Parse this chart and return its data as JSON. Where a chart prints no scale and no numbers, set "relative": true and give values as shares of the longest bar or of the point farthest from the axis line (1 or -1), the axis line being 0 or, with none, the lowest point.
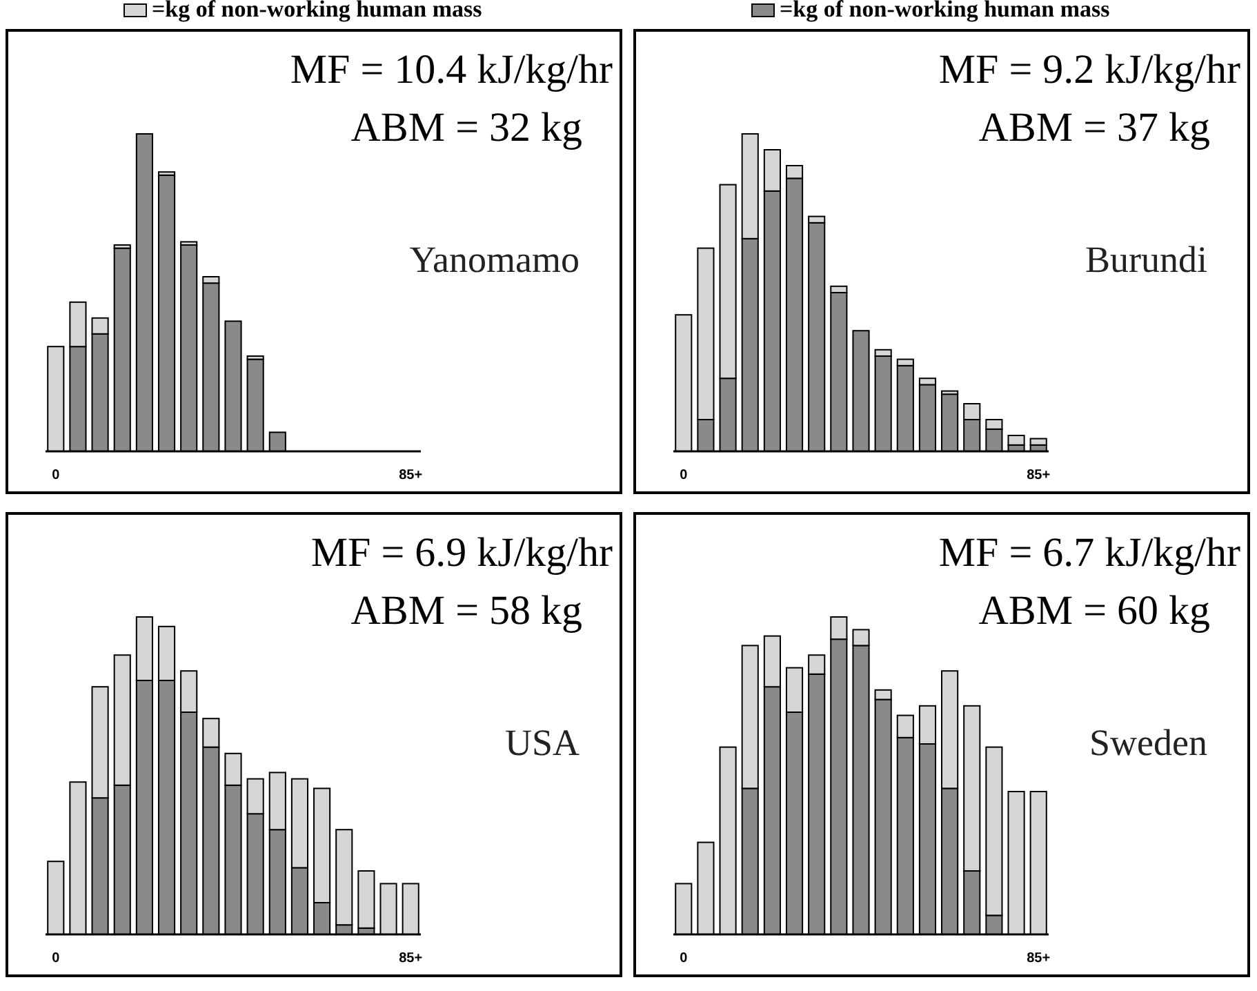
{
  "chart_data": [
    {
      "type": "bar",
      "stacked": true,
      "relative": true,
      "legend": "top",
      "categories": [
        "0",
        null,
        null,
        null,
        null,
        null,
        null,
        null,
        null,
        null,
        null,
        null,
        null,
        null,
        null,
        null,
        "85+"
      ],
      "series": [
        {
          "color": "#8a8a8a",
          "values": [
            0,
            0.33,
            0.37,
            0.64,
            1.0,
            0.87,
            0.65,
            0.53,
            0.41,
            0.29,
            0.06,
            null,
            null,
            null,
            null,
            null,
            null
          ]
        },
        {
          "name": "=kg of non-working human mass",
          "color": "#d6d6d6",
          "values": [
            0.33,
            0.14,
            0.05,
            0.01,
            0,
            0.01,
            0.01,
            0.02,
            0,
            0.01,
            0,
            null,
            null,
            null,
            null,
            null,
            null
          ]
        }
      ],
      "annotations": [
        "MF = 10.4 kJ/kg/hr",
        "ABM = 32 kg",
        "Yanomamo"
      ]
    },
    {
      "type": "bar",
      "stacked": true,
      "relative": true,
      "legend": "top",
      "categories": [
        "0",
        null,
        null,
        null,
        null,
        null,
        null,
        null,
        null,
        null,
        null,
        null,
        null,
        null,
        null,
        null,
        "85+"
      ],
      "series": [
        {
          "name": "=kg of non-working human mass",
          "color": "#8a8a8a",
          "values": [
            0,
            0.1,
            0.23,
            0.67,
            0.82,
            0.86,
            0.72,
            0.5,
            0.38,
            0.3,
            0.27,
            0.21,
            0.18,
            0.1,
            0.07,
            0.02,
            0.02
          ]
        },
        {
          "color": "#d6d6d6",
          "values": [
            0.43,
            0.54,
            0.61,
            0.33,
            0.13,
            0.04,
            0.02,
            0.02,
            0,
            0.02,
            0.02,
            0.02,
            0.01,
            0.05,
            0.03,
            0.03,
            0.02
          ]
        }
      ],
      "annotations": [
        "MF = 9.2 kJ/kg/hr",
        "ABM = 37 kg",
        "Burundi"
      ]
    },
    {
      "type": "bar",
      "stacked": true,
      "relative": true,
      "categories": [
        "0",
        null,
        null,
        null,
        null,
        null,
        null,
        null,
        null,
        null,
        null,
        null,
        null,
        null,
        null,
        null,
        "85+"
      ],
      "series": [
        {
          "color": "#8a8a8a",
          "values": [
            0,
            0,
            0.43,
            0.47,
            0.8,
            0.8,
            0.7,
            0.59,
            0.47,
            0.38,
            0.33,
            0.21,
            0.1,
            0.03,
            0.02,
            0,
            0
          ]
        },
        {
          "color": "#d6d6d6",
          "values": [
            0.23,
            0.48,
            0.35,
            0.41,
            0.2,
            0.17,
            0.13,
            0.09,
            0.1,
            0.11,
            0.18,
            0.28,
            0.36,
            0.3,
            0.18,
            0.16,
            0.16
          ]
        }
      ],
      "annotations": [
        "MF = 6.9 kJ/kg/hr",
        "ABM = 58 kg",
        "USA"
      ]
    },
    {
      "type": "bar",
      "stacked": true,
      "relative": true,
      "categories": [
        "0",
        null,
        null,
        null,
        null,
        null,
        null,
        null,
        null,
        null,
        null,
        null,
        null,
        null,
        null,
        null,
        "85+"
      ],
      "series": [
        {
          "color": "#8a8a8a",
          "values": [
            0,
            0,
            0,
            0.46,
            0.78,
            0.7,
            0.82,
            0.93,
            0.91,
            0.74,
            0.62,
            0.6,
            0.46,
            0.2,
            0.06,
            0,
            0
          ]
        },
        {
          "color": "#d6d6d6",
          "values": [
            0.16,
            0.29,
            0.59,
            0.45,
            0.16,
            0.14,
            0.06,
            0.07,
            0.05,
            0.03,
            0.07,
            0.12,
            0.37,
            0.52,
            0.53,
            0.45,
            0.45
          ]
        }
      ],
      "annotations": [
        "MF = 6.7 kJ/kg/hr",
        "ABM = 60 kg",
        "Sweden"
      ]
    }
  ]
}
